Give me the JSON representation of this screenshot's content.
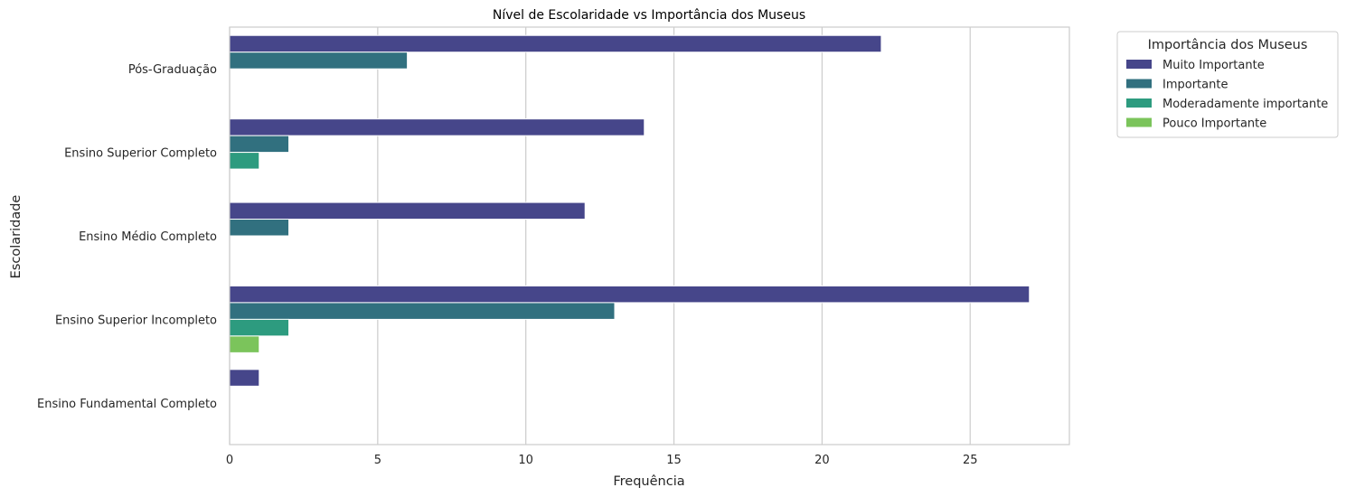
{
  "chart_data": {
    "type": "bar",
    "orientation": "horizontal",
    "title": "Nível de Escolaridade vs Importância dos Museus",
    "xlabel": "Frequência",
    "ylabel": "Escolaridade",
    "xlim": [
      0,
      28.35
    ],
    "xticks": [
      0,
      5,
      10,
      15,
      20,
      25
    ],
    "grid": true,
    "legend_placement": "outside-top-right",
    "legend_title": "Importância dos Museus",
    "categories": [
      "Pós-Graduação",
      "Ensino Superior Completo",
      "Ensino Médio Completo",
      "Ensino Superior Incompleto",
      "Ensino Fundamental Completo"
    ],
    "series": [
      {
        "name": "Muito Importante",
        "color": "#46468a",
        "values": [
          22,
          14,
          12,
          27,
          1
        ]
      },
      {
        "name": "Importante",
        "color": "#31707f",
        "values": [
          6,
          2,
          2,
          13,
          0
        ]
      },
      {
        "name": "Moderadamente importante",
        "color": "#2d9b7f",
        "values": [
          0,
          1,
          0,
          2,
          0
        ]
      },
      {
        "name": "Pouco Importante",
        "color": "#7bc45b",
        "values": [
          0,
          0,
          0,
          1,
          0
        ]
      }
    ]
  }
}
